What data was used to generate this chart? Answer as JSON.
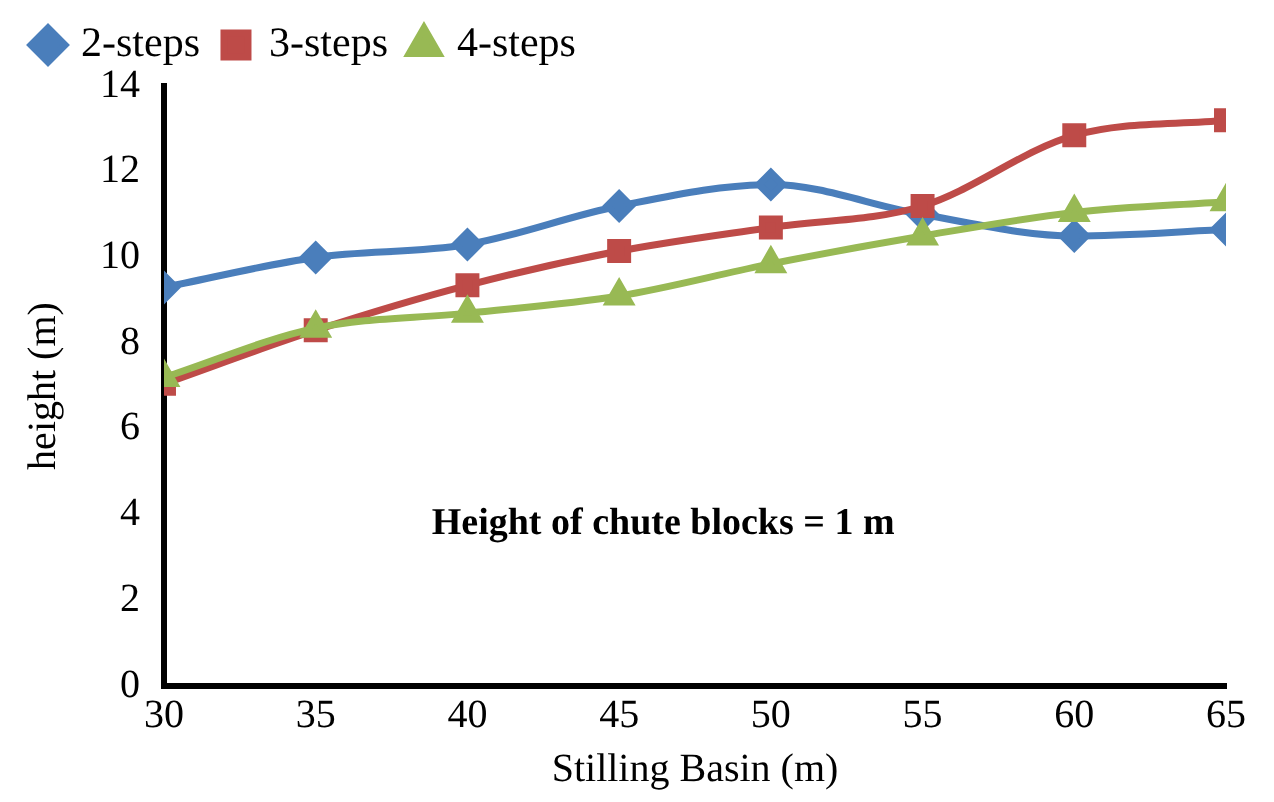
{
  "chart_data": {
    "type": "line",
    "xlabel": "Stilling Basin (m)",
    "ylabel": "height (m)",
    "x": [
      30,
      35,
      40,
      45,
      50,
      55,
      60,
      65
    ],
    "xlim": [
      30,
      65
    ],
    "xticks": [
      30,
      35,
      40,
      45,
      50,
      55,
      60,
      65
    ],
    "ylim": [
      0,
      14
    ],
    "yticks": [
      0,
      2,
      4,
      6,
      8,
      10,
      12,
      14
    ],
    "grid": false,
    "legend": "top",
    "annotations": [
      "Height of chute blocks = 1 m"
    ],
    "series": [
      {
        "name": "2-steps",
        "color": "#4a7ebb",
        "marker": "diamond",
        "values": [
          9.3,
          10.0,
          10.3,
          11.2,
          11.7,
          11.0,
          10.5,
          10.65
        ]
      },
      {
        "name": "3-steps",
        "color": "#be4b48",
        "marker": "square",
        "values": [
          7.05,
          8.3,
          9.35,
          10.15,
          10.7,
          11.2,
          12.85,
          13.2
        ]
      },
      {
        "name": "4-steps",
        "color": "#98b954",
        "marker": "triangle",
        "values": [
          7.2,
          8.35,
          8.7,
          9.1,
          9.85,
          10.5,
          11.05,
          11.3
        ]
      }
    ]
  }
}
